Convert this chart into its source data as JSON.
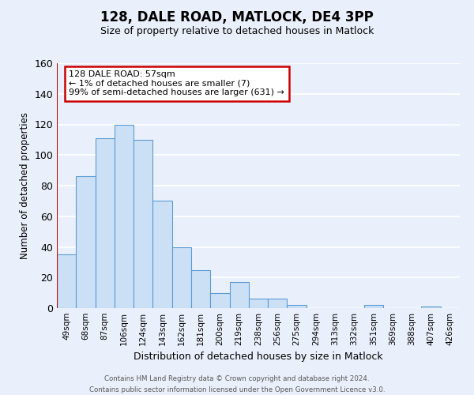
{
  "title": "128, DALE ROAD, MATLOCK, DE4 3PP",
  "subtitle": "Size of property relative to detached houses in Matlock",
  "xlabel": "Distribution of detached houses by size in Matlock",
  "ylabel": "Number of detached properties",
  "categories": [
    "49sqm",
    "68sqm",
    "87sqm",
    "106sqm",
    "124sqm",
    "143sqm",
    "162sqm",
    "181sqm",
    "200sqm",
    "219sqm",
    "238sqm",
    "256sqm",
    "275sqm",
    "294sqm",
    "313sqm",
    "332sqm",
    "351sqm",
    "369sqm",
    "388sqm",
    "407sqm",
    "426sqm"
  ],
  "values": [
    35,
    86,
    111,
    120,
    110,
    70,
    40,
    25,
    10,
    17,
    6,
    6,
    2,
    0,
    0,
    0,
    2,
    0,
    0,
    1,
    0
  ],
  "bar_color": "#cce0f5",
  "bar_edge_color": "#5b9bd5",
  "background_color": "#eaf0fb",
  "grid_color": "#ffffff",
  "ylim": [
    0,
    160
  ],
  "yticks": [
    0,
    20,
    40,
    60,
    80,
    100,
    120,
    140,
    160
  ],
  "annotation_title": "128 DALE ROAD: 57sqm",
  "annotation_line1": "← 1% of detached houses are smaller (7)",
  "annotation_line2": "99% of semi-detached houses are larger (631) →",
  "annotation_box_color": "#ffffff",
  "annotation_border_color": "#cc0000",
  "vline_color": "#cc0000",
  "footer_line1": "Contains HM Land Registry data © Crown copyright and database right 2024.",
  "footer_line2": "Contains public sector information licensed under the Open Government Licence v3.0."
}
